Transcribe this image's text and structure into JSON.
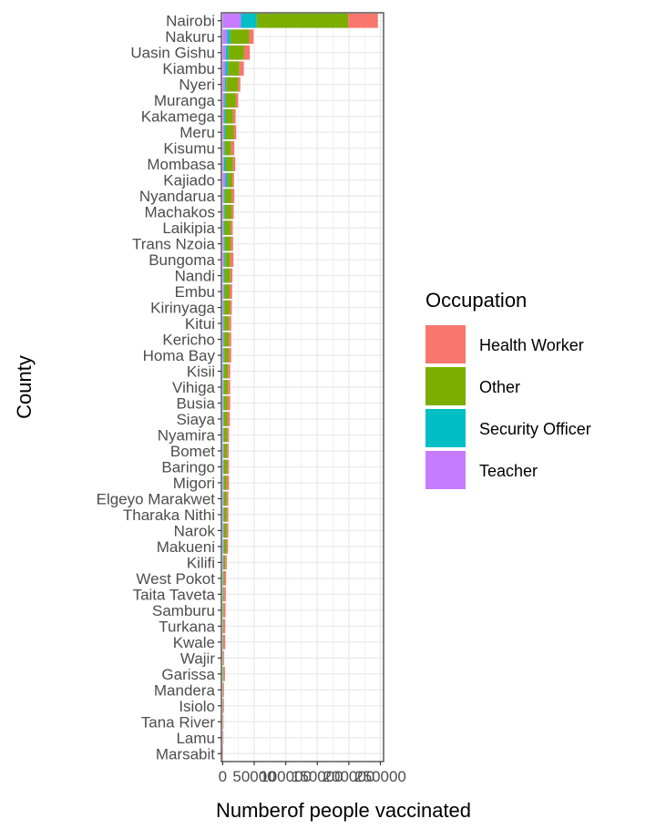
{
  "chart_data": {
    "type": "bar",
    "orientation": "horizontal",
    "stacked": true,
    "title": "",
    "xlabel": "Numberof people vaccinated",
    "ylabel": "County",
    "xlim": [
      -2000,
      255000
    ],
    "xticks": [
      0,
      50000,
      100000,
      150000,
      200000,
      250000
    ],
    "xtick_labels": [
      "0",
      "50000",
      "100000",
      "150000",
      "200000",
      "250000"
    ],
    "grid": true,
    "legend": {
      "title": "Occupation",
      "placement": "right",
      "entries": [
        "Health Worker",
        "Other",
        "Security Officer",
        "Teacher"
      ]
    },
    "colors": {
      "Health Worker": "#F8766D",
      "Other": "#7CAE00",
      "Security Officer": "#00BFC4",
      "Teacher": "#C77CFF"
    },
    "categories": [
      "Nairobi",
      "Nakuru",
      "Uasin Gishu",
      "Kiambu",
      "Nyeri",
      "Muranga",
      "Kakamega",
      "Meru",
      "Kisumu",
      "Mombasa",
      "Kajiado",
      "Nyandarua",
      "Machakos",
      "Laikipia",
      "Trans Nzoia",
      "Bungoma",
      "Nandi",
      "Embu",
      "Kirinyaga",
      "Kitui",
      "Kericho",
      "Homa Bay",
      "Kisii",
      "Vihiga",
      "Busia",
      "Siaya",
      "Nyamira",
      "Bomet",
      "Baringo",
      "Migori",
      "Elgeyo Marakwet",
      "Tharaka Nithi",
      "Narok",
      "Makueni",
      "Kilifi",
      "West Pokot",
      "Taita Taveta",
      "Samburu",
      "Turkana",
      "Kwale",
      "Wajir",
      "Garissa",
      "Mandera",
      "Isiolo",
      "Tana River",
      "Lamu",
      "Marsabit"
    ],
    "series": [
      {
        "name": "Teacher",
        "values": [
          29000,
          7000,
          5000,
          4500,
          3500,
          3000,
          2500,
          2500,
          2000,
          2000,
          4500,
          2000,
          2000,
          1500,
          2000,
          2500,
          1500,
          2000,
          1500,
          1500,
          1500,
          1500,
          1000,
          1000,
          1000,
          1000,
          1000,
          1000,
          1000,
          1000,
          1000,
          1000,
          1000,
          1000,
          800,
          500,
          500,
          300,
          300,
          300,
          200,
          300,
          200,
          200,
          100,
          100,
          50
        ]
      },
      {
        "name": "Security Officer",
        "values": [
          25000,
          5000,
          4000,
          4000,
          2000,
          2000,
          2000,
          2000,
          1500,
          2500,
          3000,
          1500,
          1500,
          1500,
          1500,
          1500,
          1500,
          1000,
          1000,
          1000,
          1000,
          1000,
          1000,
          1000,
          1000,
          1000,
          1000,
          1000,
          1000,
          1000,
          1000,
          1000,
          1000,
          1000,
          700,
          500,
          500,
          300,
          300,
          300,
          200,
          300,
          200,
          200,
          100,
          100,
          50
        ]
      },
      {
        "name": "Other",
        "values": [
          145000,
          30000,
          25000,
          18000,
          19000,
          16000,
          12000,
          13000,
          10000,
          12000,
          8000,
          11000,
          11000,
          10000,
          9500,
          8000,
          9000,
          8000,
          8500,
          7500,
          7500,
          7000,
          6500,
          6500,
          6000,
          6000,
          5500,
          5000,
          5500,
          4500,
          4500,
          4500,
          4500,
          4000,
          2500,
          2000,
          1500,
          1500,
          1000,
          1000,
          800,
          1500,
          700,
          500,
          400,
          300,
          200
        ]
      },
      {
        "name": "Health Worker",
        "values": [
          47000,
          7000,
          9000,
          7000,
          3500,
          3500,
          4000,
          4000,
          5000,
          3500,
          2500,
          4000,
          3000,
          3000,
          3500,
          5000,
          3500,
          4000,
          3500,
          3500,
          3500,
          4000,
          3500,
          3500,
          4000,
          3500,
          2500,
          2500,
          2500,
          3500,
          2500,
          2500,
          2500,
          2500,
          2500,
          2500,
          2500,
          2500,
          2500,
          2500,
          1200,
          1500,
          1200,
          1200,
          800,
          800,
          600
        ]
      }
    ]
  }
}
